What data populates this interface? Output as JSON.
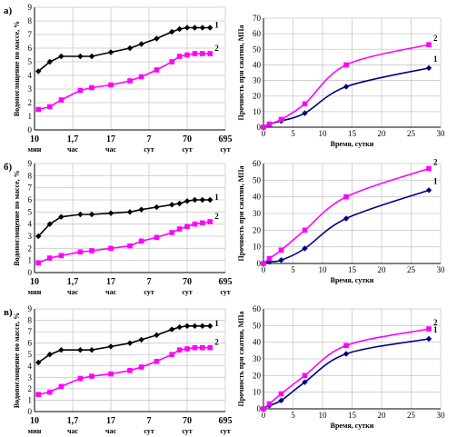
{
  "chart_data": [
    {
      "panel": "а)",
      "type": "line",
      "ylabel": "Водопоглощение по массе, %",
      "ylim": [
        0,
        9
      ],
      "yticks": [
        0,
        1,
        2,
        3,
        4,
        5,
        6,
        7,
        8,
        9
      ],
      "xcategories": [
        {
          "value": "10",
          "unit": "мин"
        },
        {
          "value": "1,7",
          "unit": "час"
        },
        {
          "value": "17",
          "unit": "час"
        },
        {
          "value": "7",
          "unit": "сут"
        },
        {
          "value": "70",
          "unit": "сут"
        },
        {
          "value": "695",
          "unit": "сут"
        }
      ],
      "xlim": [
        1,
        6
      ],
      "series": [
        {
          "name": "1",
          "color": "#000000",
          "marker": "diamond",
          "x": [
            1.1,
            1.4,
            1.7,
            2.2,
            2.5,
            3.0,
            3.5,
            3.8,
            4.2,
            4.6,
            4.8,
            5.0,
            5.2,
            5.4,
            5.6
          ],
          "y": [
            4.3,
            5.0,
            5.4,
            5.4,
            5.4,
            5.7,
            6.0,
            6.3,
            6.7,
            7.2,
            7.4,
            7.5,
            7.5,
            7.5,
            7.5
          ]
        },
        {
          "name": "2",
          "color": "#ff00ff",
          "marker": "square",
          "x": [
            1.1,
            1.4,
            1.7,
            2.2,
            2.5,
            3.0,
            3.5,
            3.8,
            4.2,
            4.6,
            4.8,
            5.0,
            5.2,
            5.4,
            5.6
          ],
          "y": [
            1.5,
            1.7,
            2.2,
            2.9,
            3.1,
            3.3,
            3.6,
            3.9,
            4.4,
            5.0,
            5.4,
            5.5,
            5.6,
            5.6,
            5.6
          ]
        }
      ]
    },
    {
      "panel": "",
      "type": "line",
      "xlabel": "Время, сутки",
      "ylabel": "Прочность при сжатии, MПа",
      "xlim": [
        0,
        30
      ],
      "ylim": [
        0,
        70
      ],
      "xticks": [
        0,
        5,
        10,
        15,
        20,
        25,
        30
      ],
      "yticks": [
        0,
        10,
        20,
        30,
        40,
        50,
        60,
        70
      ],
      "series": [
        {
          "name": "1",
          "color": "#000080",
          "marker": "diamond",
          "x": [
            0,
            1,
            3,
            7,
            14,
            28
          ],
          "y": [
            0,
            2,
            4,
            9,
            26,
            38
          ]
        },
        {
          "name": "2",
          "color": "#ff00ff",
          "marker": "square",
          "x": [
            0,
            1,
            3,
            7,
            14,
            28
          ],
          "y": [
            0,
            2,
            5,
            15,
            40,
            53
          ]
        }
      ]
    },
    {
      "panel": "б)",
      "type": "line",
      "ylabel": "Водопоглощение по массе, %",
      "ylim": [
        0,
        9
      ],
      "yticks": [
        0,
        1,
        2,
        3,
        4,
        5,
        6,
        7,
        8,
        9
      ],
      "xcategories": [
        {
          "value": "10",
          "unit": "мин"
        },
        {
          "value": "1,7",
          "unit": "час"
        },
        {
          "value": "17",
          "unit": "час"
        },
        {
          "value": "7",
          "unit": "сут"
        },
        {
          "value": "70",
          "unit": "сут"
        },
        {
          "value": "695",
          "unit": "сут"
        }
      ],
      "xlim": [
        1,
        6
      ],
      "series": [
        {
          "name": "1",
          "color": "#000000",
          "marker": "diamond",
          "x": [
            1.1,
            1.4,
            1.7,
            2.2,
            2.5,
            3.0,
            3.5,
            3.8,
            4.2,
            4.6,
            4.8,
            5.0,
            5.2,
            5.4,
            5.6
          ],
          "y": [
            3.0,
            4.0,
            4.6,
            4.8,
            4.8,
            4.9,
            5.0,
            5.2,
            5.4,
            5.6,
            5.7,
            5.9,
            6.0,
            6.0,
            6.0
          ]
        },
        {
          "name": "2",
          "color": "#ff00ff",
          "marker": "square",
          "x": [
            1.1,
            1.4,
            1.7,
            2.2,
            2.5,
            3.0,
            3.5,
            3.8,
            4.2,
            4.6,
            4.8,
            5.0,
            5.2,
            5.4,
            5.6
          ],
          "y": [
            0.8,
            1.2,
            1.4,
            1.7,
            1.8,
            2.0,
            2.2,
            2.6,
            2.9,
            3.3,
            3.6,
            3.8,
            4.0,
            4.1,
            4.2
          ]
        }
      ]
    },
    {
      "panel": "",
      "type": "line",
      "xlabel": "Время, сутки",
      "ylabel": "Прочность при сжатии, MПа",
      "xlim": [
        0,
        30
      ],
      "ylim": [
        0,
        60
      ],
      "xticks": [
        0,
        5,
        10,
        15,
        20,
        25,
        30
      ],
      "yticks": [
        0,
        10,
        20,
        30,
        40,
        50,
        60
      ],
      "series": [
        {
          "name": "1",
          "color": "#000080",
          "marker": "diamond",
          "x": [
            0,
            1,
            3,
            7,
            14,
            28
          ],
          "y": [
            0,
            1,
            2,
            9,
            27,
            44
          ]
        },
        {
          "name": "2",
          "color": "#ff00ff",
          "marker": "square",
          "x": [
            0,
            1,
            3,
            7,
            14,
            28
          ],
          "y": [
            0,
            3,
            8,
            20,
            40,
            57
          ]
        }
      ]
    },
    {
      "panel": "в)",
      "type": "line",
      "ylabel": "Водопоглощение по массе, %",
      "ylim": [
        0,
        9
      ],
      "yticks": [
        0,
        1,
        2,
        3,
        4,
        5,
        6,
        7,
        8,
        9
      ],
      "xcategories": [
        {
          "value": "10",
          "unit": "мин"
        },
        {
          "value": "1,7",
          "unit": "час"
        },
        {
          "value": "17",
          "unit": "час"
        },
        {
          "value": "7",
          "unit": "сут"
        },
        {
          "value": "70",
          "unit": "сут"
        },
        {
          "value": "695",
          "unit": "сут"
        }
      ],
      "xlim": [
        1,
        6
      ],
      "series": [
        {
          "name": "1",
          "color": "#000000",
          "marker": "diamond",
          "x": [
            1.1,
            1.4,
            1.7,
            2.2,
            2.5,
            3.0,
            3.5,
            3.8,
            4.2,
            4.6,
            4.8,
            5.0,
            5.2,
            5.4,
            5.6
          ],
          "y": [
            4.3,
            5.0,
            5.4,
            5.4,
            5.4,
            5.7,
            6.0,
            6.3,
            6.7,
            7.2,
            7.4,
            7.5,
            7.5,
            7.5,
            7.5
          ]
        },
        {
          "name": "2",
          "color": "#ff00ff",
          "marker": "square",
          "x": [
            1.1,
            1.4,
            1.7,
            2.2,
            2.5,
            3.0,
            3.5,
            3.8,
            4.2,
            4.6,
            4.8,
            5.0,
            5.2,
            5.4,
            5.6
          ],
          "y": [
            1.5,
            1.7,
            2.2,
            2.9,
            3.1,
            3.3,
            3.6,
            3.9,
            4.4,
            5.0,
            5.4,
            5.5,
            5.6,
            5.6,
            5.6
          ]
        }
      ]
    },
    {
      "panel": "",
      "type": "line",
      "xlabel": "Время, сутки",
      "ylabel": "Прочность при сжатии, MПа",
      "xlim": [
        0,
        30
      ],
      "ylim": [
        0,
        60
      ],
      "xticks": [
        0,
        5,
        10,
        15,
        20,
        25,
        30
      ],
      "yticks": [
        0,
        10,
        20,
        30,
        40,
        50,
        60
      ],
      "series": [
        {
          "name": "1",
          "color": "#000080",
          "marker": "diamond",
          "x": [
            0,
            1,
            3,
            7,
            14,
            28
          ],
          "y": [
            0,
            2,
            5,
            16,
            33,
            42
          ]
        },
        {
          "name": "2",
          "color": "#ff00ff",
          "marker": "square",
          "x": [
            0,
            1,
            3,
            7,
            14,
            28
          ],
          "y": [
            0,
            3,
            9,
            20,
            38,
            48
          ]
        }
      ]
    }
  ]
}
